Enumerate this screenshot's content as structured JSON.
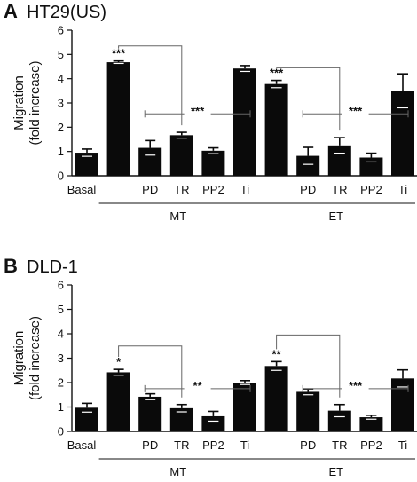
{
  "chart_data": [
    {
      "type": "bar",
      "panel_label": "A",
      "title": "HT29(US)",
      "ylabel_line1": "Migration",
      "ylabel_line2": "(fold increase)",
      "ylim": [
        0,
        6
      ],
      "yticks": [
        "0",
        "1",
        "2",
        "3",
        "4",
        "5",
        "6"
      ],
      "categories": [
        "Basal",
        "",
        "PD",
        "TR",
        "PP2",
        "Ti",
        "",
        "PD",
        "TR",
        "PP2",
        "Ti"
      ],
      "values": [
        0.95,
        4.68,
        1.15,
        1.67,
        1.03,
        4.42,
        3.78,
        0.82,
        1.25,
        0.75,
        3.5
      ],
      "errors": [
        0.15,
        0.05,
        0.3,
        0.12,
        0.12,
        0.12,
        0.15,
        0.35,
        0.32,
        0.18,
        0.7
      ],
      "groups": [
        {
          "label": "MT",
          "from": 1,
          "to": 5
        },
        {
          "label": "ET",
          "from": 6,
          "to": 10
        }
      ],
      "stars_above_bar": [
        {
          "bar": 1,
          "text": "***"
        },
        {
          "bar": 6,
          "text": "***"
        }
      ],
      "comparisons": [
        {
          "type": "bracket",
          "from": 1,
          "to": 3,
          "y": 5.35
        },
        {
          "type": "range",
          "from": 2,
          "to": 5,
          "y": 2.55,
          "text": "***"
        },
        {
          "type": "bracket",
          "from": 6,
          "to": 8,
          "y": 4.45
        },
        {
          "type": "range",
          "from": 7,
          "to": 10,
          "y": 2.55,
          "text": "***"
        }
      ]
    },
    {
      "type": "bar",
      "panel_label": "B",
      "title": "DLD-1",
      "ylabel_line1": "Migration",
      "ylabel_line2": "(fold increase)",
      "ylim": [
        0,
        6
      ],
      "yticks": [
        "0",
        "1",
        "2",
        "3",
        "4",
        "5",
        "6"
      ],
      "categories": [
        "Basal",
        "",
        "PD",
        "TR",
        "PP2",
        "Ti",
        "",
        "PD",
        "TR",
        "PP2",
        "Ti"
      ],
      "values": [
        0.97,
        2.42,
        1.42,
        0.95,
        0.62,
        2.0,
        2.68,
        1.62,
        0.85,
        0.58,
        2.17
      ],
      "errors": [
        0.18,
        0.12,
        0.12,
        0.15,
        0.2,
        0.08,
        0.18,
        0.12,
        0.25,
        0.08,
        0.35
      ],
      "groups": [
        {
          "label": "MT",
          "from": 1,
          "to": 5
        },
        {
          "label": "ET",
          "from": 6,
          "to": 10
        }
      ],
      "stars_above_bar": [
        {
          "bar": 1,
          "text": "*"
        },
        {
          "bar": 6,
          "text": "**"
        }
      ],
      "comparisons": [
        {
          "type": "bracket",
          "from": 1,
          "to": 3,
          "y": 3.5
        },
        {
          "type": "range",
          "from": 2,
          "to": 5,
          "y": 1.75,
          "text": "**"
        },
        {
          "type": "bracket",
          "from": 6,
          "to": 8,
          "y": 3.95
        },
        {
          "type": "range",
          "from": 7,
          "to": 10,
          "y": 1.75,
          "text": "***"
        }
      ]
    }
  ]
}
